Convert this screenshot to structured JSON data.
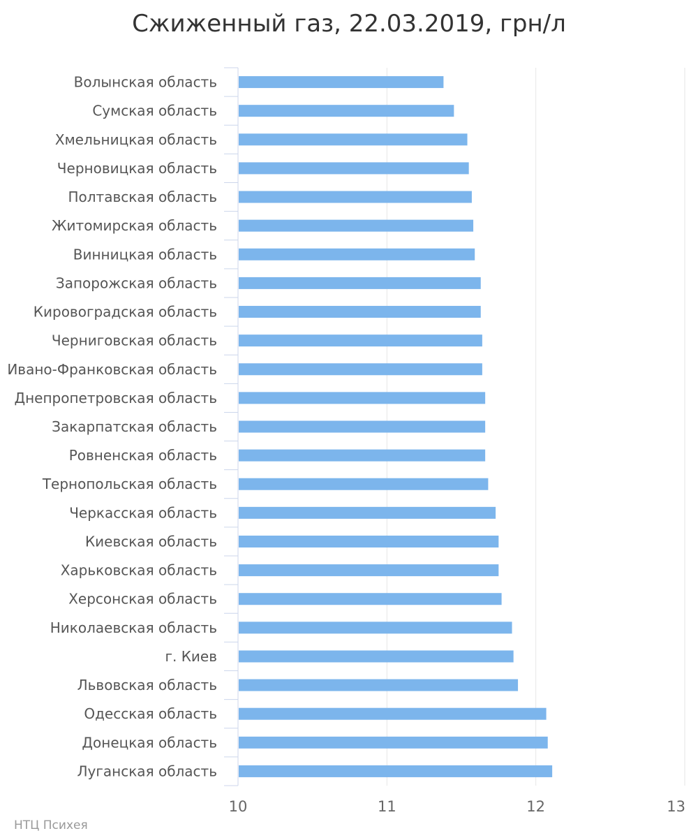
{
  "chart_data": {
    "type": "bar",
    "orientation": "horizontal",
    "title": "Сжиженный газ, 22.03.2019, грн/л",
    "xlabel": "",
    "ylabel": "",
    "xlim": [
      10,
      13
    ],
    "x_ticks": [
      "10",
      "11",
      "12",
      "13"
    ],
    "grid": true,
    "bar_color": "#7cb5ec",
    "categories": [
      "Волынская область",
      "Сумская область",
      "Хмельницкая область",
      "Черновицкая область",
      "Полтавская область",
      "Житомирская область",
      "Винницкая область",
      "Запорожская область",
      "Кировоградская область",
      "Черниговская область",
      "Ивано-Франковская область",
      "Днепропетровская область",
      "Закарпатская область",
      "Ровненская область",
      "Тернопольская область",
      "Черкасская область",
      "Киевская область",
      "Харьковская область",
      "Херсонская область",
      "Николаевская область",
      "г. Киев",
      "Львовская область",
      "Одесская область",
      "Донецкая область",
      "Луганская область"
    ],
    "values": [
      11.38,
      11.45,
      11.54,
      11.55,
      11.57,
      11.58,
      11.59,
      11.63,
      11.63,
      11.64,
      11.64,
      11.66,
      11.66,
      11.66,
      11.68,
      11.73,
      11.75,
      11.75,
      11.77,
      11.84,
      11.85,
      11.88,
      12.07,
      12.08,
      12.11
    ]
  },
  "credit": "НТЦ Психея"
}
